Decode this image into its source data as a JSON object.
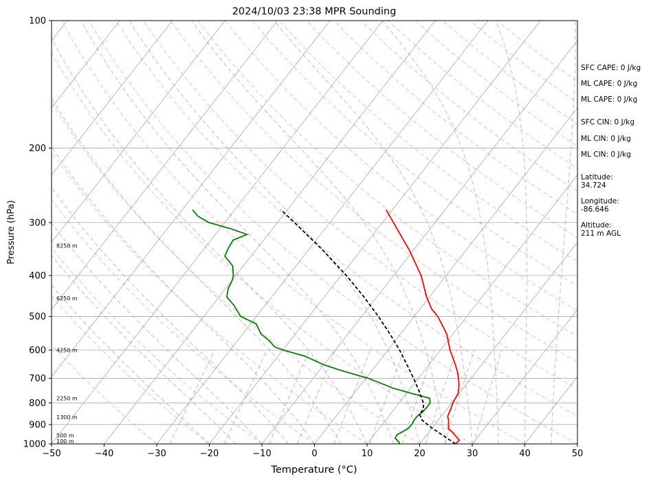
{
  "chart_data": {
    "type": "line",
    "subtype": "skew-t log-p",
    "title": "2024/10/03 23:38 MPR Sounding",
    "xlabel": "Temperature (°C)",
    "ylabel": "Pressure (hPa)",
    "xlim": [
      -50,
      50
    ],
    "ylim": [
      1000,
      100
    ],
    "y_scale": "log",
    "grid": true,
    "x_ticks": [
      -50,
      -40,
      -30,
      -20,
      -10,
      0,
      10,
      20,
      30,
      40,
      50
    ],
    "y_ticks": [
      100,
      200,
      300,
      400,
      500,
      600,
      700,
      800,
      900,
      1000
    ],
    "series": [
      {
        "name": "temperature",
        "color": "#ff0000",
        "points": [
          [
            1000,
            26.8
          ],
          [
            980,
            27.0
          ],
          [
            960,
            25.8
          ],
          [
            940,
            24.6
          ],
          [
            920,
            23.2
          ],
          [
            900,
            22.6
          ],
          [
            880,
            22.0
          ],
          [
            860,
            21.2
          ],
          [
            840,
            20.9
          ],
          [
            820,
            20.6
          ],
          [
            800,
            20.2
          ],
          [
            780,
            20.0
          ],
          [
            760,
            19.8
          ],
          [
            740,
            19.2
          ],
          [
            720,
            18.5
          ],
          [
            700,
            17.6
          ],
          [
            680,
            16.7
          ],
          [
            650,
            15.0
          ],
          [
            600,
            11.8
          ],
          [
            550,
            8.8
          ],
          [
            500,
            4.5
          ],
          [
            480,
            2.2
          ],
          [
            450,
            -0.5
          ],
          [
            400,
            -4.8
          ],
          [
            350,
            -10.6
          ],
          [
            300,
            -17.9
          ],
          [
            280,
            -21.2
          ]
        ]
      },
      {
        "name": "dewpoint",
        "color": "#008000",
        "points": [
          [
            1000,
            16.1
          ],
          [
            990,
            15.8
          ],
          [
            970,
            14.5
          ],
          [
            950,
            14.3
          ],
          [
            940,
            14.8
          ],
          [
            920,
            15.5
          ],
          [
            900,
            15.6
          ],
          [
            880,
            15.4
          ],
          [
            860,
            15.4
          ],
          [
            840,
            15.8
          ],
          [
            820,
            15.9
          ],
          [
            800,
            15.9
          ],
          [
            780,
            15.1
          ],
          [
            760,
            11.0
          ],
          [
            740,
            6.9
          ],
          [
            700,
            0.5
          ],
          [
            670,
            -6.0
          ],
          [
            650,
            -10.0
          ],
          [
            620,
            -15.0
          ],
          [
            600,
            -20.0
          ],
          [
            590,
            -22.0
          ],
          [
            570,
            -24.0
          ],
          [
            550,
            -26.5
          ],
          [
            520,
            -29.0
          ],
          [
            500,
            -33.0
          ],
          [
            470,
            -36.0
          ],
          [
            450,
            -38.5
          ],
          [
            430,
            -39.5
          ],
          [
            410,
            -40.0
          ],
          [
            400,
            -40.5
          ],
          [
            380,
            -42.0
          ],
          [
            360,
            -45.0
          ],
          [
            345,
            -45.5
          ],
          [
            330,
            -45.8
          ],
          [
            320,
            -44.0
          ],
          [
            310,
            -48.0
          ],
          [
            300,
            -53.0
          ],
          [
            290,
            -56.0
          ],
          [
            280,
            -58.0
          ]
        ]
      },
      {
        "name": "parcel",
        "color": "#000000",
        "style": "dashed",
        "points": [
          [
            1000,
            26.8
          ],
          [
            960,
            23.6
          ],
          [
            920,
            20.2
          ],
          [
            880,
            17.0
          ],
          [
            850,
            15.5
          ],
          [
            830,
            15.6
          ],
          [
            800,
            14.6
          ],
          [
            750,
            12.0
          ],
          [
            700,
            9.1
          ],
          [
            650,
            5.8
          ],
          [
            600,
            2.2
          ],
          [
            550,
            -2.0
          ],
          [
            500,
            -6.8
          ],
          [
            450,
            -12.4
          ],
          [
            400,
            -19.0
          ],
          [
            350,
            -27.0
          ],
          [
            300,
            -36.7
          ],
          [
            280,
            -41.2
          ]
        ]
      }
    ],
    "height_labels": [
      {
        "p": 985,
        "text": "100 m"
      },
      {
        "p": 955,
        "text": "500 m"
      },
      {
        "p": 865,
        "text": "1300 m"
      },
      {
        "p": 780,
        "text": "2250 m"
      },
      {
        "p": 600,
        "text": "4250 m"
      },
      {
        "p": 453,
        "text": "6250 m"
      },
      {
        "p": 340,
        "text": "8250 m"
      }
    ],
    "reference_lines": {
      "isotherms_color": "#aaaaaa",
      "dry_adiabats_color": "#ff7f7f",
      "moist_adiabats_color": "#7f7fff",
      "mixing_ratio_color": "#7fbf7f"
    }
  },
  "info": {
    "sfc_cape": "SFC CAPE: 0 J/kg",
    "ml_cape_1": "ML CAPE: 0 J/kg",
    "ml_cape_2": "ML CAPE: 0 J/kg",
    "sfc_cin": "SFC CIN: 0 J/kg",
    "ml_cin_1": "ML CIN: 0 J/kg",
    "ml_cin_2": "ML CIN: 0 J/kg",
    "latitude": "Latitude:\n34.724",
    "longitude": "Longitude:\n-86.646",
    "altitude": "Altitude:\n211 m AGL"
  }
}
